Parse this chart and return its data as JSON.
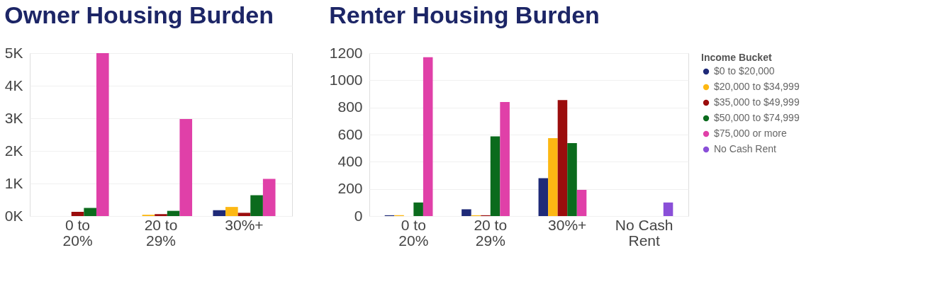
{
  "chart_data": [
    {
      "type": "bar",
      "title": "Owner Housing Burden",
      "categories": [
        "0 to 20%",
        "20 to 29%",
        "30%+"
      ],
      "ylim": [
        0,
        5000
      ],
      "yticks": [
        {
          "value": 0,
          "label": "0K"
        },
        {
          "value": 1000,
          "label": "1K"
        },
        {
          "value": 2000,
          "label": "2K"
        },
        {
          "value": 3000,
          "label": "3K"
        },
        {
          "value": 4000,
          "label": "4K"
        },
        {
          "value": 5000,
          "label": "5K"
        }
      ],
      "grid": "y",
      "legend": false,
      "series": [
        {
          "color": "#1f2a78",
          "values": [
            null,
            null,
            180
          ]
        },
        {
          "color": "#fdb813",
          "values": [
            null,
            40,
            280
          ]
        },
        {
          "color": "#9b0d0d",
          "values": [
            130,
            60,
            100
          ]
        },
        {
          "color": "#0b6b1d",
          "values": [
            250,
            160,
            640
          ]
        },
        {
          "color": "#e040a8",
          "values": [
            5000,
            2980,
            1140
          ]
        }
      ]
    },
    {
      "type": "bar",
      "title": "Renter Housing Burden",
      "legend_title": "Income Bucket",
      "categories": [
        "0 to 20%",
        "20 to 29%",
        "30%+",
        "No Cash Rent"
      ],
      "ylim": [
        0,
        1200
      ],
      "yticks": [
        0,
        200,
        400,
        600,
        800,
        {
          "value": 1000,
          "label": "1000"
        },
        {
          "value": 1200,
          "label": "1200"
        }
      ],
      "grid": "y",
      "legend": "right",
      "series": [
        {
          "name": "$0 to $20,000",
          "color": "#1f2a78",
          "values": [
            6,
            50,
            279,
            null
          ]
        },
        {
          "name": "$20,000 to $34,999",
          "color": "#fdb813",
          "values": [
            6,
            6,
            574,
            null
          ]
        },
        {
          "name": "$35,000 to $49,999",
          "color": "#9b0d0d",
          "values": [
            null,
            6,
            855,
            null
          ]
        },
        {
          "name": "$50,000 to $74,999",
          "color": "#0b6b1d",
          "values": [
            100,
            587,
            537,
            null
          ]
        },
        {
          "name": "$75,000 or more",
          "color": "#e040a8",
          "values": [
            1170,
            840,
            193,
            null
          ]
        },
        {
          "name": "No Cash Rent",
          "color": "#8a4fd8",
          "values": [
            null,
            null,
            null,
            100
          ]
        }
      ]
    }
  ]
}
